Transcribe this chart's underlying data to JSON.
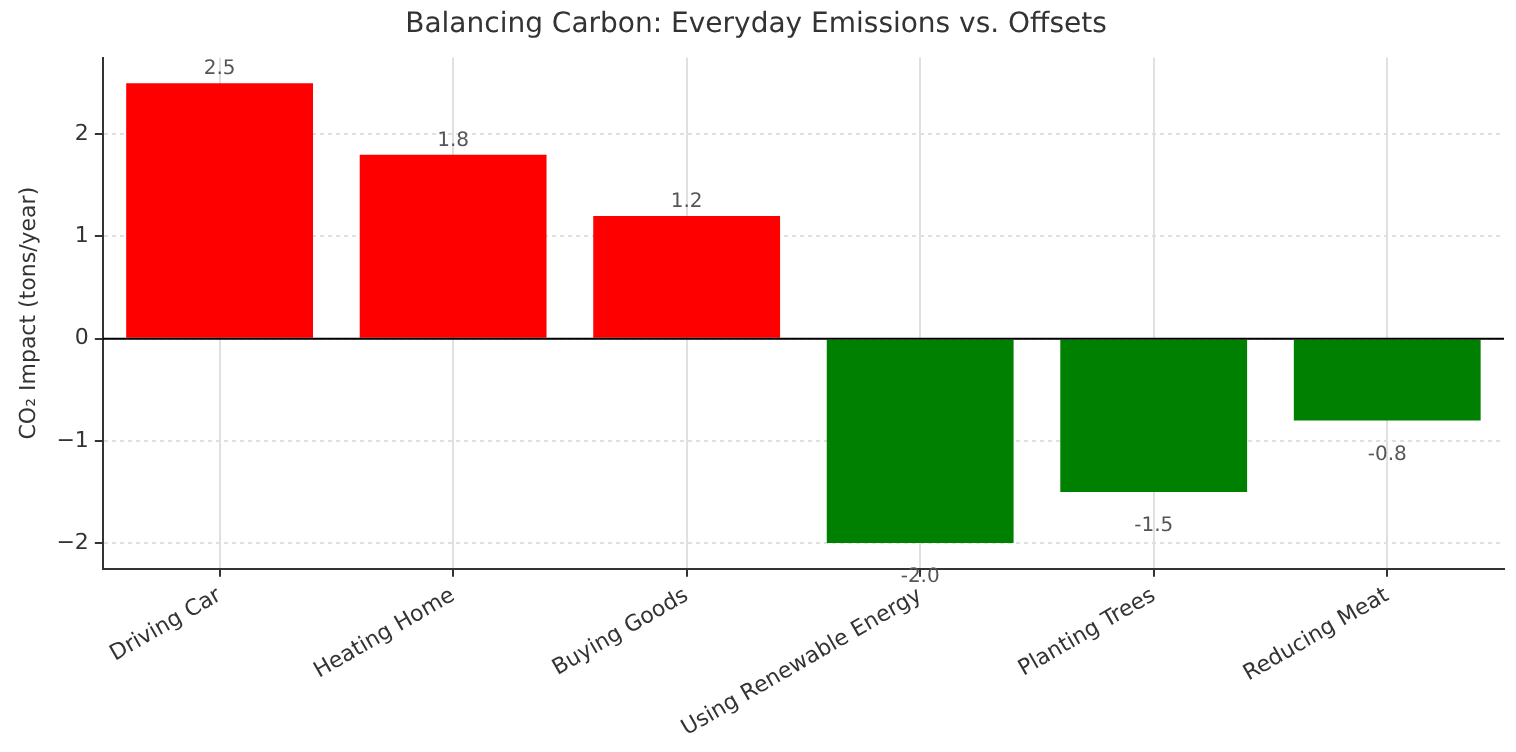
{
  "chart_data": {
    "type": "bar",
    "title": "Balancing Carbon: Everyday Emissions vs. Offsets",
    "ylabel": "CO₂ Impact (tons/year)",
    "categories": [
      "Driving Car",
      "Heating Home",
      "Buying Goods",
      "Using Renewable Energy",
      "Planting Trees",
      "Reducing Meat"
    ],
    "values": [
      2.5,
      1.8,
      1.2,
      -2.0,
      -1.5,
      -0.8
    ],
    "value_labels": [
      "2.5",
      "1.8",
      "1.2",
      "-2.0",
      "-1.5",
      "-0.8"
    ],
    "colors": [
      "#ff0000",
      "#ff0000",
      "#ff0000",
      "#008000",
      "#008000",
      "#008000"
    ],
    "ylim": [
      -2.25,
      2.75
    ],
    "yticks": [
      -2,
      -1,
      0,
      1,
      2
    ],
    "ref_lines": [
      {
        "axis": "y",
        "value": 0,
        "color": "#000000"
      }
    ],
    "grid": true
  }
}
